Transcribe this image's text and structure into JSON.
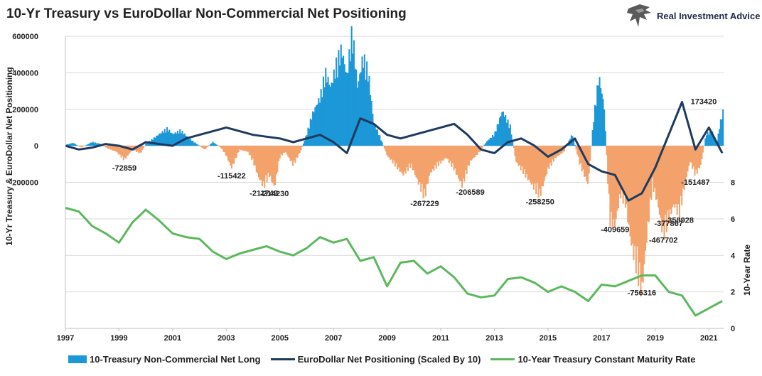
{
  "header": {
    "title": "10-Yr Treasury vs EuroDollar Non-Commercial Net Positioning",
    "brand": "Real Investment Advice"
  },
  "colors": {
    "long": "#1c97d7",
    "short": "#f4a26b",
    "eurodollar": "#1f3a5f",
    "treasury_rate": "#5cb85c",
    "grid": "#d9d9d9"
  },
  "chart_data": {
    "type": "bar",
    "title": "10-Yr Treasury vs EuroDollar Non-Commercial Net Positioning",
    "ylabel": "10-Yr Treasury & EuroDollar Net Positioning",
    "y2label": "10-Year Rate",
    "ylim": [
      -1000000,
      600000
    ],
    "y_ticks": [
      600000,
      400000,
      200000,
      0,
      -200000
    ],
    "y2lim": [
      0,
      16
    ],
    "y2_ticks": [
      8,
      6,
      4,
      2,
      0
    ],
    "xlim": [
      1997,
      2021.55
    ],
    "x_ticks": [
      "1997",
      "1999",
      "2001",
      "2003",
      "2005",
      "2007",
      "2009",
      "2011",
      "2013",
      "2015",
      "2017",
      "2019",
      "2021"
    ],
    "grid": true,
    "legend_position": "bottom",
    "series": [
      {
        "name": "10-Treasury Non-Commercial Net Long",
        "type": "bar",
        "x": [
          1997.0,
          1997.3,
          1997.6,
          1998.0,
          1998.3,
          1998.6,
          1998.9,
          1999.2,
          1999.5,
          1999.8,
          2000.0,
          2000.3,
          2000.6,
          2000.8,
          2001.0,
          2001.3,
          2001.6,
          2001.9,
          2002.2,
          2002.5,
          2002.8,
          2003.0,
          2003.2,
          2003.5,
          2003.8,
          2004.0,
          2004.2,
          2004.4,
          2004.6,
          2004.8,
          2005.0,
          2005.2,
          2005.5,
          2005.8,
          2006.0,
          2006.2,
          2006.5,
          2006.7,
          2006.9,
          2007.1,
          2007.3,
          2007.5,
          2007.7,
          2007.9,
          2008.1,
          2008.3,
          2008.5,
          2008.7,
          2009.0,
          2009.3,
          2009.6,
          2009.9,
          2010.2,
          2010.4,
          2010.6,
          2010.9,
          2011.2,
          2011.5,
          2011.8,
          2012.1,
          2012.4,
          2012.7,
          2013.0,
          2013.3,
          2013.6,
          2013.8,
          2014.1,
          2014.4,
          2014.7,
          2015.0,
          2015.3,
          2015.6,
          2015.9,
          2016.2,
          2016.5,
          2016.7,
          2016.9,
          2017.1,
          2017.3,
          2017.5,
          2017.7,
          2017.9,
          2018.1,
          2018.3,
          2018.5,
          2018.7,
          2018.9,
          2019.1,
          2019.3,
          2019.5,
          2019.7,
          2019.9,
          2020.1,
          2020.3,
          2020.5,
          2020.7,
          2020.9,
          2021.1,
          2021.3,
          2021.5
        ],
        "values": [
          5000,
          15000,
          -10000,
          20000,
          10000,
          -15000,
          -30000,
          -72859,
          -20000,
          -40000,
          10000,
          40000,
          70000,
          90000,
          60000,
          80000,
          40000,
          10000,
          -20000,
          20000,
          -10000,
          -50000,
          -115422,
          -20000,
          -30000,
          -80000,
          -160000,
          -211749,
          -150000,
          -214230,
          -60000,
          -30000,
          -100000,
          -20000,
          60000,
          160000,
          250000,
          380000,
          300000,
          420000,
          500000,
          360000,
          600000,
          300000,
          460000,
          380000,
          120000,
          60000,
          -50000,
          -100000,
          -150000,
          -100000,
          -200000,
          -267229,
          -140000,
          -100000,
          -60000,
          -120000,
          -206589,
          -80000,
          -40000,
          20000,
          60000,
          180000,
          100000,
          -80000,
          -140000,
          -200000,
          -258250,
          -120000,
          -60000,
          -30000,
          60000,
          -100000,
          -200000,
          140000,
          360000,
          200000,
          -380000,
          -409659,
          -250000,
          -300000,
          -500000,
          -620000,
          -756316,
          -450000,
          -200000,
          -300000,
          -467702,
          -377867,
          -300000,
          -358928,
          -200000,
          -80000,
          -151487,
          -100000,
          60000,
          80000,
          20000,
          173420
        ]
      },
      {
        "name": "EuroDollar Net Positioning (Scaled By 10)",
        "type": "line",
        "x": [
          1997.0,
          1997.5,
          1998.0,
          1998.5,
          1999.0,
          1999.5,
          2000.0,
          2000.5,
          2001.0,
          2001.5,
          2002.0,
          2002.5,
          2003.0,
          2003.5,
          2004.0,
          2004.5,
          2005.0,
          2005.5,
          2006.0,
          2006.5,
          2007.0,
          2007.5,
          2008.0,
          2008.5,
          2009.0,
          2009.5,
          2010.0,
          2010.5,
          2011.0,
          2011.5,
          2012.0,
          2012.5,
          2013.0,
          2013.5,
          2014.0,
          2014.5,
          2015.0,
          2015.5,
          2016.0,
          2016.5,
          2017.0,
          2017.5,
          2018.0,
          2018.5,
          2019.0,
          2019.5,
          2020.0,
          2020.5,
          2021.0,
          2021.5
        ],
        "values": [
          0,
          -20000,
          -10000,
          10000,
          0,
          -20000,
          20000,
          10000,
          0,
          40000,
          60000,
          80000,
          100000,
          80000,
          60000,
          50000,
          40000,
          20000,
          40000,
          60000,
          20000,
          -40000,
          150000,
          120000,
          60000,
          40000,
          60000,
          80000,
          100000,
          120000,
          60000,
          -20000,
          -40000,
          20000,
          40000,
          0,
          -60000,
          -20000,
          40000,
          -100000,
          -140000,
          -160000,
          -300000,
          -260000,
          -120000,
          60000,
          240000,
          -20000,
          100000,
          -40000
        ]
      },
      {
        "name": "10-Year Treasury Constant Maturity Rate",
        "type": "line",
        "axis": "right",
        "x": [
          1997.0,
          1997.5,
          1998.0,
          1998.5,
          1999.0,
          1999.5,
          2000.0,
          2000.5,
          2001.0,
          2001.5,
          2002.0,
          2002.5,
          2003.0,
          2003.5,
          2004.0,
          2004.5,
          2005.0,
          2005.5,
          2006.0,
          2006.5,
          2007.0,
          2007.5,
          2008.0,
          2008.5,
          2009.0,
          2009.5,
          2010.0,
          2010.5,
          2011.0,
          2011.5,
          2012.0,
          2012.5,
          2013.0,
          2013.5,
          2014.0,
          2014.5,
          2015.0,
          2015.5,
          2016.0,
          2016.5,
          2017.0,
          2017.5,
          2018.0,
          2018.5,
          2019.0,
          2019.5,
          2020.0,
          2020.5,
          2021.0,
          2021.5
        ],
        "values": [
          6.6,
          6.4,
          5.6,
          5.2,
          4.7,
          5.8,
          6.5,
          5.9,
          5.2,
          5.0,
          4.9,
          4.2,
          3.8,
          4.1,
          4.3,
          4.5,
          4.2,
          4.0,
          4.4,
          5.0,
          4.7,
          4.9,
          3.7,
          3.9,
          2.3,
          3.6,
          3.7,
          3.0,
          3.4,
          2.8,
          1.9,
          1.7,
          1.8,
          2.7,
          2.8,
          2.5,
          2.0,
          2.3,
          2.0,
          1.5,
          2.4,
          2.3,
          2.6,
          2.9,
          2.9,
          2.0,
          1.8,
          0.7,
          1.1,
          1.5
        ]
      }
    ],
    "annotations": [
      {
        "x": 1999.2,
        "value": -72859,
        "text": "-72859"
      },
      {
        "x": 2003.2,
        "value": -115422,
        "text": "-115422"
      },
      {
        "x": 2004.4,
        "value": -211749,
        "text": "-211749"
      },
      {
        "x": 2004.8,
        "value": -214230,
        "text": "-214230"
      },
      {
        "x": 2010.4,
        "value": -267229,
        "text": "-267229"
      },
      {
        "x": 2012.1,
        "value": -206589,
        "text": "-206589"
      },
      {
        "x": 2014.7,
        "value": -258250,
        "text": "-258250"
      },
      {
        "x": 2017.5,
        "value": -409659,
        "text": "-409659"
      },
      {
        "x": 2018.5,
        "value": -756316,
        "text": "-756316"
      },
      {
        "x": 2019.3,
        "value": -467702,
        "text": "-467702"
      },
      {
        "x": 2019.5,
        "value": -377867,
        "text": "-377867"
      },
      {
        "x": 2019.9,
        "value": -358928,
        "text": "-358928"
      },
      {
        "x": 2020.5,
        "value": -151487,
        "text": "-151487"
      },
      {
        "x": 2021.5,
        "value": 173420,
        "text": "173420"
      }
    ]
  }
}
